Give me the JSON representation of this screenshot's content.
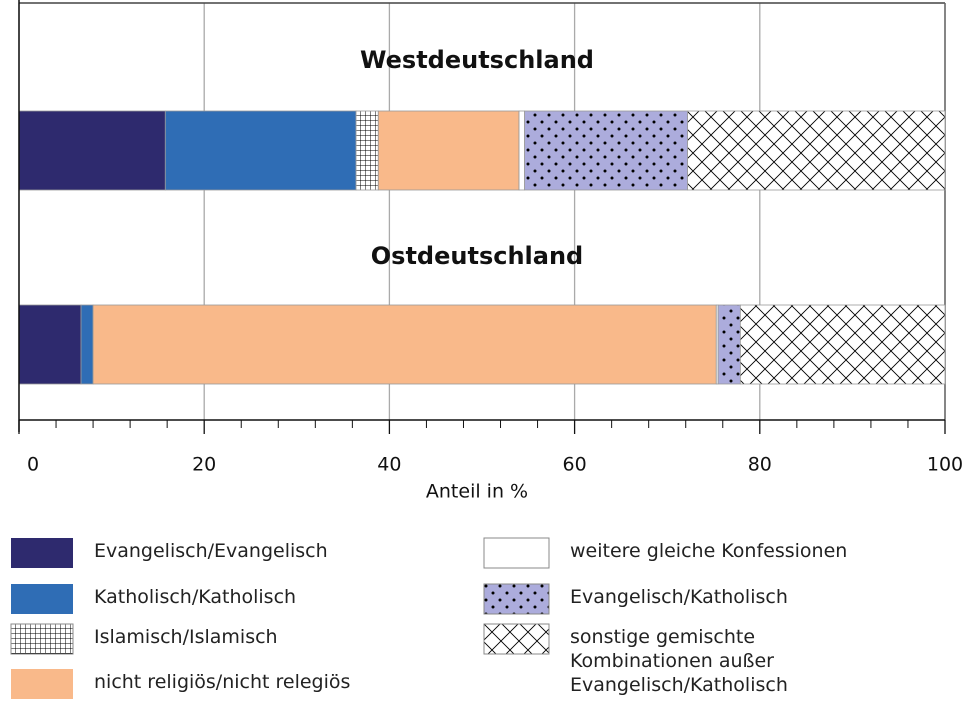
{
  "chart_data": {
    "type": "stacked-bar-horizontal",
    "categories": [
      "Westdeutschland",
      "Ostdeutschland"
    ],
    "xlabel": "Anteil in %",
    "xlim": [
      0,
      100
    ],
    "xticks": [
      0,
      20,
      40,
      60,
      80,
      100
    ],
    "xticks_minor": [
      4,
      8,
      12,
      16,
      24,
      28,
      32,
      36,
      44,
      48,
      52,
      56,
      64,
      68,
      72,
      76,
      84,
      88,
      92,
      96
    ],
    "grid": true,
    "series": [
      {
        "name": "Evangelisch/Evangelisch",
        "color": "#2e2a6e",
        "pattern": null,
        "values": [
          15.8,
          6.7
        ]
      },
      {
        "name": "Katholisch/Katholisch",
        "color": "#2f6db5",
        "pattern": null,
        "values": [
          20.6,
          1.3
        ]
      },
      {
        "name": "Islamisch/Islamisch",
        "color": "#ffffff",
        "pattern": "grid",
        "values": [
          2.4,
          0
        ]
      },
      {
        "name": "nicht religiös/nicht relegiös",
        "color": "#f9b98a",
        "pattern": null,
        "values": [
          15.2,
          67.3
        ]
      },
      {
        "name": "weitere gleiche Konfessionen",
        "color": "#ffffff",
        "pattern": null,
        "values": [
          0.6,
          0.2
        ]
      },
      {
        "name": "Evangelisch/Katholisch",
        "color": "#acacdc",
        "pattern": "dots",
        "values": [
          17.6,
          2.4
        ]
      },
      {
        "name": "sonstige gemischte Kombinationen außer Evangelisch/Katholisch",
        "color": "#ffffff",
        "pattern": "crosshatch",
        "values": [
          27.8,
          22.1
        ]
      }
    ]
  }
}
